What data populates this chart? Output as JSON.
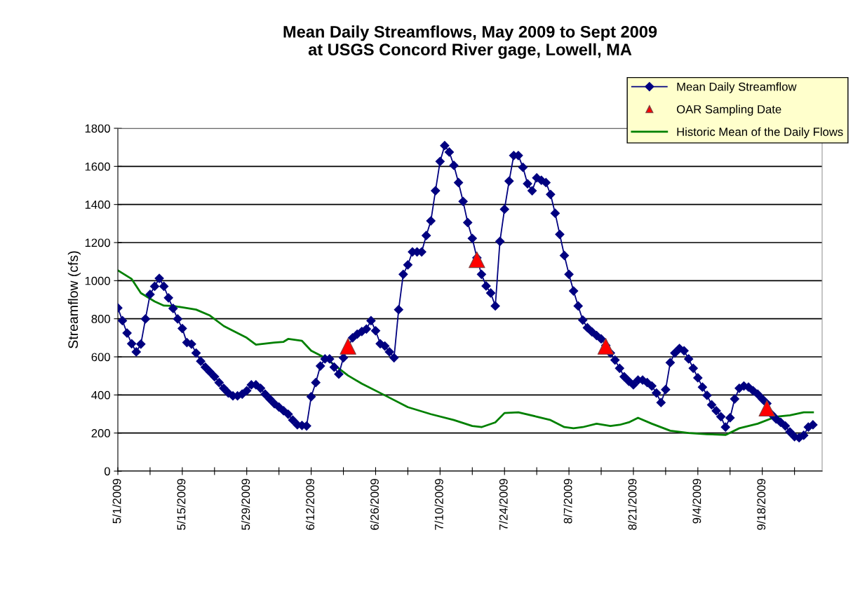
{
  "chart_data": {
    "type": "line",
    "title": "Mean Daily Streamflows, May 2009 to Sept 2009\nat USGS Concord River gage, Lowell, MA",
    "ylabel": "Streamflow (cfs)",
    "xlim": [
      "2009-05-01",
      "2009-10-01"
    ],
    "xticks": [
      {
        "value": "2009-05-01",
        "label": "5/1/2009"
      },
      {
        "value": "2009-05-08",
        "label": null
      },
      {
        "value": "2009-05-15",
        "label": "5/15/2009"
      },
      {
        "value": "2009-05-22",
        "label": null
      },
      {
        "value": "2009-05-29",
        "label": "5/29/2009"
      },
      {
        "value": "2009-06-05",
        "label": null
      },
      {
        "value": "2009-06-12",
        "label": "6/12/2009"
      },
      {
        "value": "2009-06-19",
        "label": null
      },
      {
        "value": "2009-06-26",
        "label": "6/26/2009"
      },
      {
        "value": "2009-07-03",
        "label": null
      },
      {
        "value": "2009-07-10",
        "label": "7/10/2009"
      },
      {
        "value": "2009-07-17",
        "label": null
      },
      {
        "value": "2009-07-24",
        "label": "7/24/2009"
      },
      {
        "value": "2009-07-31",
        "label": null
      },
      {
        "value": "2009-08-07",
        "label": "8/7/2009"
      },
      {
        "value": "2009-08-14",
        "label": null
      },
      {
        "value": "2009-08-21",
        "label": "8/21/2009"
      },
      {
        "value": "2009-08-28",
        "label": null
      },
      {
        "value": "2009-09-04",
        "label": "9/4/2009"
      },
      {
        "value": "2009-09-11",
        "label": null
      },
      {
        "value": "2009-09-18",
        "label": "9/18/2009"
      },
      {
        "value": "2009-09-25",
        "label": null
      }
    ],
    "ylim": [
      0,
      1800
    ],
    "yticks": [
      0,
      200,
      400,
      600,
      800,
      1000,
      1200,
      1400,
      1600,
      1800
    ],
    "grid": "y",
    "legend": "top right",
    "series": [
      {
        "name": "Mean Daily Streamflow",
        "marker": "diamond",
        "color": "#000080",
        "x": [
          "2009-05-01",
          "2009-05-02",
          "2009-05-03",
          "2009-05-04",
          "2009-05-05",
          "2009-05-06",
          "2009-05-07",
          "2009-05-08",
          "2009-05-09",
          "2009-05-10",
          "2009-05-11",
          "2009-05-12",
          "2009-05-13",
          "2009-05-14",
          "2009-05-15",
          "2009-05-16",
          "2009-05-17",
          "2009-05-18",
          "2009-05-19",
          "2009-05-20",
          "2009-05-21",
          "2009-05-22",
          "2009-05-23",
          "2009-05-24",
          "2009-05-25",
          "2009-05-26",
          "2009-05-27",
          "2009-05-28",
          "2009-05-29",
          "2009-05-30",
          "2009-05-31",
          "2009-06-01",
          "2009-06-02",
          "2009-06-03",
          "2009-06-04",
          "2009-06-05",
          "2009-06-06",
          "2009-06-07",
          "2009-06-08",
          "2009-06-09",
          "2009-06-10",
          "2009-06-11",
          "2009-06-12",
          "2009-06-13",
          "2009-06-14",
          "2009-06-15",
          "2009-06-16",
          "2009-06-17",
          "2009-06-18",
          "2009-06-19",
          "2009-06-20",
          "2009-06-21",
          "2009-06-22",
          "2009-06-23",
          "2009-06-24",
          "2009-06-25",
          "2009-06-26",
          "2009-06-27",
          "2009-06-28",
          "2009-06-29",
          "2009-06-30",
          "2009-07-01",
          "2009-07-02",
          "2009-07-03",
          "2009-07-04",
          "2009-07-05",
          "2009-07-06",
          "2009-07-07",
          "2009-07-08",
          "2009-07-09",
          "2009-07-10",
          "2009-07-11",
          "2009-07-12",
          "2009-07-13",
          "2009-07-14",
          "2009-07-15",
          "2009-07-16",
          "2009-07-17",
          "2009-07-18",
          "2009-07-19",
          "2009-07-20",
          "2009-07-21",
          "2009-07-22",
          "2009-07-23",
          "2009-07-24",
          "2009-07-25",
          "2009-07-26",
          "2009-07-27",
          "2009-07-28",
          "2009-07-29",
          "2009-07-30",
          "2009-07-31",
          "2009-08-01",
          "2009-08-02",
          "2009-08-03",
          "2009-08-04",
          "2009-08-05",
          "2009-08-06",
          "2009-08-07",
          "2009-08-08",
          "2009-08-09",
          "2009-08-10",
          "2009-08-11",
          "2009-08-12",
          "2009-08-13",
          "2009-08-14",
          "2009-08-15",
          "2009-08-16",
          "2009-08-17",
          "2009-08-18",
          "2009-08-19",
          "2009-08-20",
          "2009-08-21",
          "2009-08-22",
          "2009-08-23",
          "2009-08-24",
          "2009-08-25",
          "2009-08-26",
          "2009-08-27",
          "2009-08-28",
          "2009-08-29",
          "2009-08-30",
          "2009-08-31",
          "2009-09-01",
          "2009-09-02",
          "2009-09-03",
          "2009-09-04",
          "2009-09-05",
          "2009-09-06",
          "2009-09-07",
          "2009-09-08",
          "2009-09-09",
          "2009-09-10",
          "2009-09-11",
          "2009-09-12",
          "2009-09-13",
          "2009-09-14",
          "2009-09-15",
          "2009-09-16",
          "2009-09-17",
          "2009-09-18",
          "2009-09-19",
          "2009-09-20",
          "2009-09-21",
          "2009-09-22",
          "2009-09-23",
          "2009-09-24",
          "2009-09-25",
          "2009-09-26",
          "2009-09-27",
          "2009-09-28",
          "2009-09-29"
        ],
        "values": [
          857,
          790,
          725,
          669,
          626,
          667,
          799,
          928,
          970,
          1012,
          970,
          910,
          854,
          799,
          749,
          675,
          667,
          620,
          577,
          546,
          521,
          496,
          465,
          435,
          410,
          395,
          395,
          404,
          422,
          453,
          453,
          435,
          404,
          379,
          354,
          336,
          317,
          299,
          268,
          243,
          240,
          237,
          391,
          465,
          552,
          589,
          589,
          546,
          509,
          595,
          null,
          700,
          719,
          733,
          746,
          790,
          737,
          669,
          657,
          626,
          595,
          848,
          1033,
          1083,
          1151,
          1151,
          1151,
          1237,
          1314,
          1472,
          1626,
          1709,
          1675,
          1605,
          1515,
          1416,
          1305,
          1222,
          1120,
          1033,
          972,
          935,
          867,
          1206,
          1375,
          1523,
          1657,
          1657,
          1595,
          1509,
          1472,
          1540,
          1527,
          1515,
          1453,
          1354,
          1243,
          1132,
          1033,
          946,
          867,
          793,
          753,
          731,
          712,
          694,
          660,
          620,
          583,
          540,
          496,
          472,
          453,
          478,
          478,
          465,
          447,
          410,
          360,
          428,
          570,
          620,
          644,
          632,
          589,
          540,
          490,
          441,
          398,
          348,
          317,
          286,
          231,
          280,
          379,
          435,
          447,
          441,
          422,
          404,
          379,
          355,
          299,
          274,
          256,
          237,
          206,
          181,
          175,
          188,
          231,
          243
        ]
      },
      {
        "name": "OAR Sampling Date",
        "type": "scatter",
        "marker": "triangle",
        "color": "#ff0000",
        "x": [
          "2009-06-20",
          "2009-07-18",
          "2009-08-15",
          "2009-09-19"
        ],
        "values": [
          655,
          1110,
          655,
          330
        ]
      },
      {
        "name": "Historic Mean of the Daily Flows",
        "marker": "none",
        "color": "#008000",
        "x": [
          "2009-05-01",
          "2009-05-04",
          "2009-05-06",
          "2009-05-09",
          "2009-05-11",
          "2009-05-13",
          "2009-05-15",
          "2009-05-18",
          "2009-05-21",
          "2009-05-24",
          "2009-05-26",
          "2009-05-29",
          "2009-05-31",
          "2009-06-04",
          "2009-06-06",
          "2009-06-07",
          "2009-06-10",
          "2009-06-12",
          "2009-06-15",
          "2009-06-17",
          "2009-06-20",
          "2009-06-23",
          "2009-06-28",
          "2009-07-03",
          "2009-07-08",
          "2009-07-13",
          "2009-07-17",
          "2009-07-19",
          "2009-07-22",
          "2009-07-24",
          "2009-07-27",
          "2009-07-31",
          "2009-08-03",
          "2009-08-06",
          "2009-08-08",
          "2009-08-10",
          "2009-08-13",
          "2009-08-16",
          "2009-08-18",
          "2009-08-20",
          "2009-08-22",
          "2009-08-25",
          "2009-08-29",
          "2009-09-02",
          "2009-09-06",
          "2009-09-10",
          "2009-09-13",
          "2009-09-17",
          "2009-09-21",
          "2009-09-24",
          "2009-09-27",
          "2009-09-29"
        ],
        "values": [
          1054,
          1009,
          935,
          891,
          869,
          867,
          860,
          848,
          817,
          762,
          737,
          700,
          664,
          675,
          679,
          694,
          684,
          632,
          595,
          558,
          502,
          459,
          398,
          336,
          299,
          268,
          237,
          231,
          256,
          305,
          309,
          286,
          268,
          231,
          225,
          231,
          249,
          237,
          243,
          256,
          280,
          249,
          212,
          200,
          194,
          190,
          225,
          249,
          286,
          293,
          309,
          309
        ]
      }
    ]
  }
}
